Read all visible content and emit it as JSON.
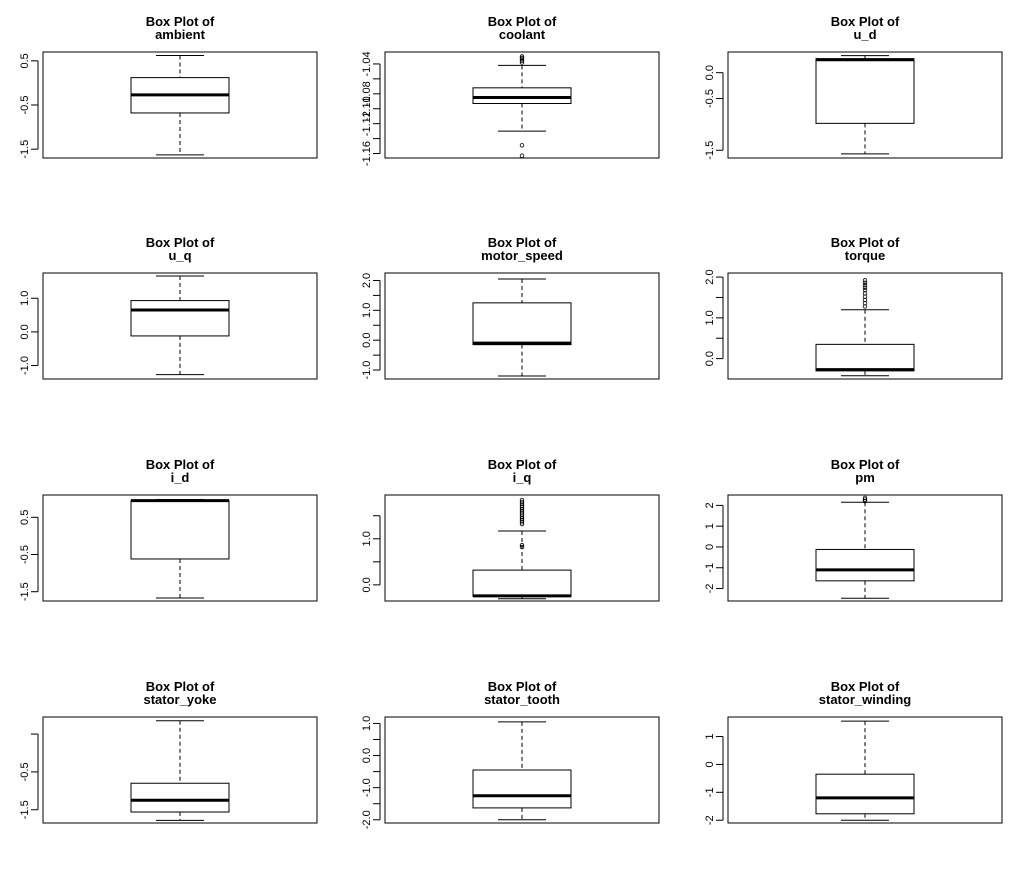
{
  "chart_data": [
    {
      "type": "box",
      "title": "Box Plot of",
      "subtitle": "ambient",
      "ylim": [
        -1.7,
        0.7
      ],
      "yticks": [
        0.5,
        -0.5,
        -1.5
      ],
      "yticklabels": [
        "0.5",
        "-0.5",
        "-1.5"
      ],
      "whisker_low": -1.63,
      "q1": -0.68,
      "median": -0.27,
      "q3": 0.12,
      "whisker_high": 0.62,
      "outliers": []
    },
    {
      "type": "box",
      "title": "Box Plot of",
      "subtitle": "coolant",
      "ylim": [
        -1.166,
        -1.024
      ],
      "yticks": [
        -1.04,
        -1.06,
        -1.08,
        -1.1,
        -1.12,
        -1.14,
        -1.16
      ],
      "yticklabels": [
        "-1.04",
        "",
        "-1.08",
        "-1.10",
        "-1.12",
        "",
        "-1.16"
      ],
      "whisker_low": -1.13,
      "q1": -1.093,
      "median": -1.085,
      "q3": -1.072,
      "whisker_high": -1.042,
      "outliers": [
        -1.03,
        -1.032,
        -1.034,
        -1.036,
        -1.038,
        -1.149,
        -1.163
      ]
    },
    {
      "type": "box",
      "title": "Box Plot of",
      "subtitle": "u_d",
      "ylim": [
        -1.65,
        0.4
      ],
      "yticks": [
        0.0,
        -0.5,
        -1.5
      ],
      "yticklabels": [
        "0.0",
        "-0.5",
        "-1.5"
      ],
      "whisker_low": -1.57,
      "q1": -0.98,
      "median": 0.25,
      "q3": 0.27,
      "whisker_high": 0.33,
      "outliers": []
    },
    {
      "type": "box",
      "title": "Box Plot of",
      "subtitle": "u_q",
      "ylim": [
        -1.4,
        1.75
      ],
      "yticks": [
        1.0,
        0.0,
        -1.0
      ],
      "yticklabels": [
        "1.0",
        "0.0",
        "-1.0"
      ],
      "whisker_low": -1.27,
      "q1": -0.12,
      "median": 0.65,
      "q3": 0.93,
      "whisker_high": 1.66,
      "outliers": []
    },
    {
      "type": "box",
      "title": "Box Plot of",
      "subtitle": "motor_speed",
      "ylim": [
        -1.3,
        2.25
      ],
      "yticks": [
        2.0,
        1.5,
        1.0,
        0.5,
        0.0,
        -0.5,
        -1.0
      ],
      "yticklabels": [
        "2.0",
        "",
        "1.0",
        "",
        "0.0",
        "",
        "-1.0"
      ],
      "whisker_low": -1.2,
      "q1": -0.15,
      "median": -0.1,
      "q3": 1.25,
      "whisker_high": 2.05,
      "outliers": []
    },
    {
      "type": "box",
      "title": "Box Plot of",
      "subtitle": "torque",
      "ylim": [
        -0.5,
        2.1
      ],
      "yticks": [
        2.0,
        1.5,
        1.0,
        0.5,
        0.0
      ],
      "yticklabels": [
        "2.0",
        "",
        "1.0",
        "",
        "0.0"
      ],
      "whisker_low": -0.42,
      "q1": -0.3,
      "median": -0.27,
      "q3": 0.35,
      "whisker_high": 1.2,
      "outliers": [
        1.28,
        1.36,
        1.44,
        1.52,
        1.6,
        1.68,
        1.74,
        1.8,
        1.86,
        1.92
      ]
    },
    {
      "type": "box",
      "title": "Box Plot of",
      "subtitle": "i_d",
      "ylim": [
        -1.75,
        1.1
      ],
      "yticks": [
        0.5,
        -0.5,
        -1.5
      ],
      "yticklabels": [
        "0.5",
        "-0.5",
        "-1.5"
      ],
      "whisker_low": -1.67,
      "q1": -0.62,
      "median": 0.95,
      "q3": 0.95,
      "whisker_high": 0.98,
      "outliers": []
    },
    {
      "type": "box",
      "title": "Box Plot of",
      "subtitle": "i_q",
      "ylim": [
        -0.35,
        1.95
      ],
      "yticks": [
        1.5,
        1.0,
        0.5,
        0.0
      ],
      "yticklabels": [
        "",
        "1.0",
        "",
        "0.0"
      ],
      "whisker_low": -0.3,
      "q1": -0.25,
      "median": -0.24,
      "q3": 0.32,
      "whisker_high": 1.17,
      "outliers": [
        0.82,
        0.86,
        1.32,
        1.36,
        1.4,
        1.44,
        1.48,
        1.52,
        1.56,
        1.6,
        1.64,
        1.68,
        1.72,
        1.76,
        1.8,
        1.84
      ]
    },
    {
      "type": "box",
      "title": "Box Plot of",
      "subtitle": "pm",
      "ylim": [
        -2.6,
        2.5
      ],
      "yticks": [
        2,
        1,
        0,
        -1,
        -2
      ],
      "yticklabels": [
        "2",
        "1",
        "0",
        "-1",
        "-2"
      ],
      "whisker_low": -2.47,
      "q1": -1.63,
      "median": -1.1,
      "q3": -0.12,
      "whisker_high": 2.15,
      "outliers": [
        2.2,
        2.28,
        2.36
      ]
    },
    {
      "type": "box",
      "title": "Box Plot of",
      "subtitle": "stator_yoke",
      "ylim": [
        -1.85,
        0.95
      ],
      "yticks": [
        0.5,
        -0.5,
        -1.5
      ],
      "yticklabels": [
        "",
        "-0.5",
        "-1.5"
      ],
      "whisker_low": -1.78,
      "q1": -1.56,
      "median": -1.25,
      "q3": -0.8,
      "whisker_high": 0.85,
      "outliers": []
    },
    {
      "type": "box",
      "title": "Box Plot of",
      "subtitle": "stator_tooth",
      "ylim": [
        -2.1,
        1.2
      ],
      "yticks": [
        1.0,
        0.5,
        0.0,
        -0.5,
        -1.0,
        -1.5,
        -2.0
      ],
      "yticklabels": [
        "1.0",
        "",
        "0.0",
        "",
        "-1.0",
        "",
        "-2.0"
      ],
      "whisker_low": -2.0,
      "q1": -1.63,
      "median": -1.25,
      "q3": -0.45,
      "whisker_high": 1.05,
      "outliers": []
    },
    {
      "type": "box",
      "title": "Box Plot of",
      "subtitle": "stator_winding",
      "ylim": [
        -2.1,
        1.7
      ],
      "yticks": [
        1,
        0,
        -1,
        -2
      ],
      "yticklabels": [
        "1",
        "0",
        "-1",
        "-2"
      ],
      "whisker_low": -2.0,
      "q1": -1.77,
      "median": -1.2,
      "q3": -0.35,
      "whisker_high": 1.55,
      "outliers": []
    }
  ]
}
